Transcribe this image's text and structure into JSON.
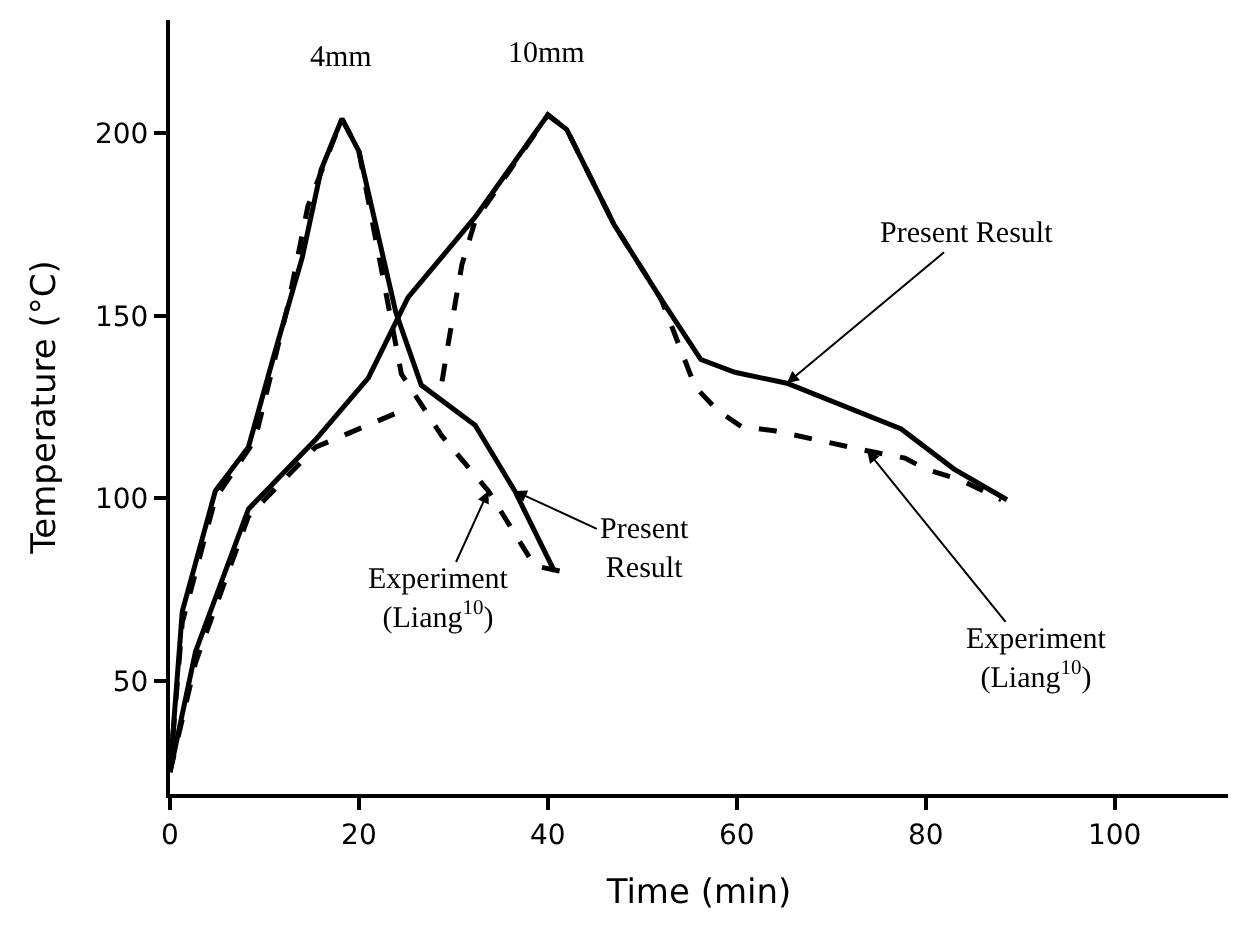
{
  "chart_data": {
    "type": "line",
    "xlabel": "Time (min)",
    "ylabel": "Temperature (°C)",
    "xlim": [
      0,
      112
    ],
    "ylim": [
      19,
      231
    ],
    "xticks": [
      0,
      20,
      40,
      60,
      80,
      100
    ],
    "yticks": [
      50,
      100,
      150,
      200
    ],
    "grid": false,
    "marker": "none",
    "series": [
      {
        "color": "#000000",
        "line_style": "solid",
        "x": [
          0,
          1.3,
          4.8,
          8.3,
          11.1,
          14,
          16,
          18.2,
          20,
          23.9,
          26.6,
          32.3,
          36.5,
          40.7
        ],
        "values": [
          25,
          69,
          102,
          114,
          140,
          166,
          190,
          204,
          195,
          151,
          131,
          120,
          102,
          80
        ]
      },
      {
        "color": "#000000",
        "line_style": "dashed",
        "x": [
          0,
          1.3,
          4.8,
          9,
          12.5,
          14.6,
          18.2,
          20,
          24.5,
          28.8,
          33.7,
          38.6,
          41.4
        ],
        "values": [
          25,
          66,
          100,
          116,
          153,
          180,
          204,
          195,
          134,
          117,
          102,
          81.5,
          80
        ]
      },
      {
        "color": "#000000",
        "line_style": "solid",
        "x": [
          0,
          2.7,
          8.3,
          15.4,
          21,
          25.2,
          32.3,
          40,
          42,
          47,
          52,
          56.2,
          59.8,
          65.3,
          77.4,
          83,
          88.6
        ],
        "values": [
          25,
          58,
          97,
          116,
          133,
          155,
          177,
          205,
          201,
          175,
          154.5,
          138,
          134.5,
          131.5,
          119,
          108,
          99.6
        ]
      },
      {
        "color": "#000000",
        "line_style": "dashed",
        "x": [
          0,
          2.7,
          8.3,
          15.4,
          24.1,
          null,
          28.8,
          29.4,
          30.9,
          32.3,
          40,
          42,
          47,
          52,
          55.6,
          58,
          60.5,
          64,
          73.8,
          77.8,
          80,
          83.7,
          88
        ],
        "values": [
          25,
          55,
          95,
          114,
          123.5,
          null,
          132,
          141.5,
          164,
          176,
          205,
          201,
          175,
          154.5,
          130.5,
          124,
          119.6,
          118.5,
          113,
          111,
          108,
          105,
          99.6
        ]
      }
    ],
    "annotations": [
      {
        "text": "4mm",
        "x": 18.2,
        "y": 204
      },
      {
        "text": "10mm",
        "x": 40,
        "y": 205
      },
      {
        "text": "Present Result",
        "x": 65.3,
        "y": 131.5
      },
      {
        "text": "Experiment\n(Liang$^{10}$)",
        "x": 73.8,
        "y": 113
      },
      {
        "text": "Present\nResult",
        "x": 36.5,
        "y": 102
      },
      {
        "text": "Experiment\n(Liang$^{10}$)",
        "x": 33.7,
        "y": 102
      }
    ]
  }
}
